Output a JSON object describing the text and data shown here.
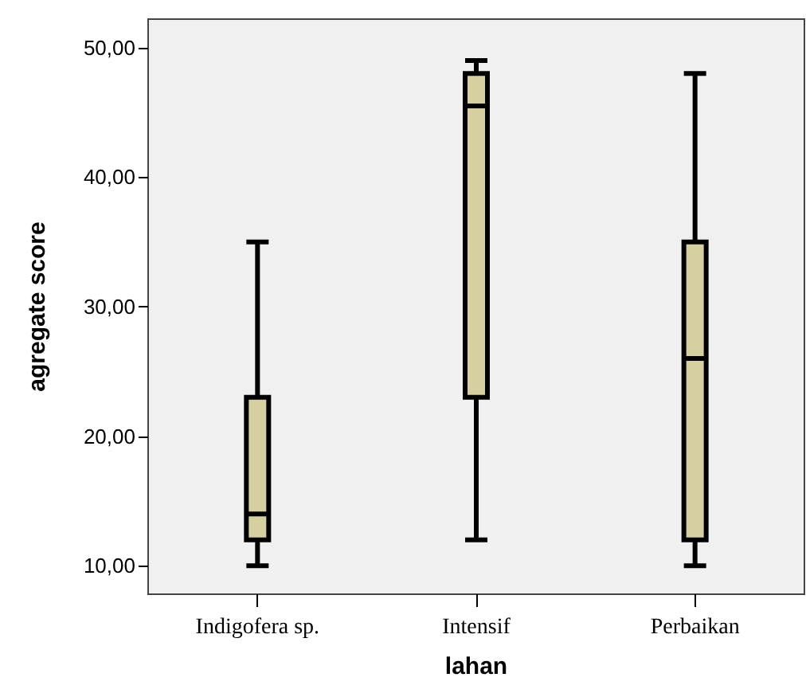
{
  "chart_data": {
    "type": "box",
    "xlabel": "lahan",
    "ylabel": "agregate score",
    "categories": [
      "Indigofera sp.",
      "Intensif",
      "Perbaikan"
    ],
    "color": "#d6cfa0",
    "boxes": [
      {
        "low": 10,
        "q1": 12,
        "median": 14,
        "q3": 23,
        "high": 35
      },
      {
        "low": 12,
        "q1": 23,
        "median": 45.5,
        "q3": 48,
        "high": 49
      },
      {
        "low": 10,
        "q1": 12,
        "median": 26,
        "q3": 35,
        "high": 48
      }
    ],
    "ylim": [
      7.8,
      52.2
    ],
    "yticks": [
      {
        "value": 10,
        "label": "10,00"
      },
      {
        "value": 20,
        "label": "20,00"
      },
      {
        "value": 30,
        "label": "30,00"
      },
      {
        "value": 40,
        "label": "40,00"
      },
      {
        "value": 50,
        "label": "50,00"
      }
    ]
  }
}
